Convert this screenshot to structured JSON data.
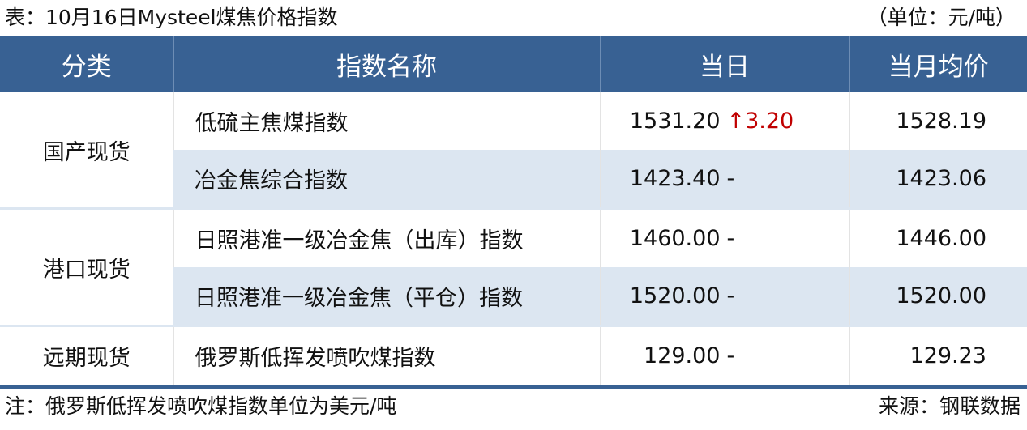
{
  "title": "表：10月16日Mysteel煤焦价格指数",
  "unit": "（单位：元/吨）",
  "headers": [
    "分类",
    "指数名称",
    "当日",
    "当月均价"
  ],
  "groups": [
    {
      "category": "国产现货",
      "rows": [
        {
          "name": "低硫主焦煤指数",
          "value": "1531.20",
          "change": "↑3.20",
          "change_direction": "up",
          "monthly_avg": "1528.19"
        },
        {
          "name": "冶金焦综合指数",
          "value": "1423.40",
          "change": "-",
          "monthly_avg": "1423.06"
        }
      ]
    },
    {
      "category": "港口现货",
      "rows": [
        {
          "name": "日照港准一级冶金焦（出库）指数",
          "value": "1460.00",
          "change": "-",
          "monthly_avg": "1446.00"
        },
        {
          "name": "日照港准一级冶金焦（平仓）指数",
          "value": "1520.00",
          "change": "-",
          "monthly_avg": "1520.00"
        }
      ]
    },
    {
      "category": "远期现货",
      "rows": [
        {
          "name": "俄罗斯低挥发喷吹煤指数",
          "value": "129.00",
          "change": "-",
          "monthly_avg": "129.23"
        }
      ]
    }
  ],
  "note": "注：俄罗斯低挥发喷吹煤指数单位为美元/吨",
  "source": "来源：钢联数据",
  "colors": {
    "header_bg": "#386193",
    "row_shade": "#dce6f1",
    "up": "#c00000"
  }
}
